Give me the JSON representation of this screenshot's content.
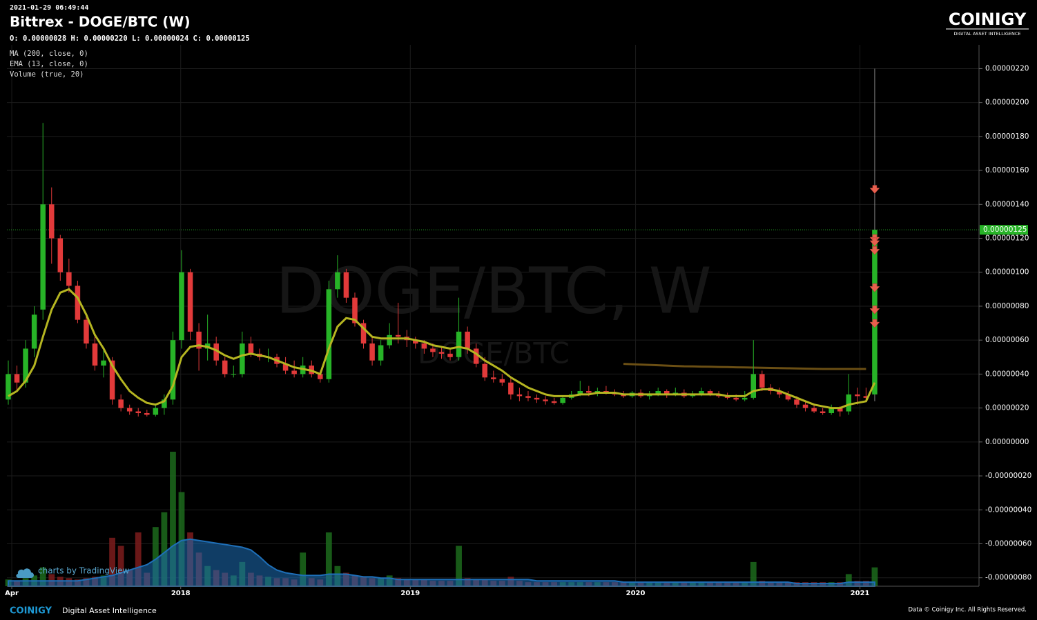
{
  "timestamp": "2021-01-29 06:49:44",
  "title": "Bittrex - DOGE/BTC (W)",
  "ohlc_line": "O: 0.00000028 H: 0.00000220 L: 0.00000024 C: 0.00000125",
  "indicators": [
    "MA (200, close, 0)",
    "EMA (13, close, 0)",
    "Volume (true, 20)"
  ],
  "watermark": "DOGE/BTC, W",
  "watermark_sub": "DOGE/BTC",
  "logo": {
    "name": "COINIGY",
    "tagline": "DIGITAL ASSET INTELLIGENCE"
  },
  "footer": {
    "brand": "COINIGY",
    "tagline": "Digital Asset Intelligence",
    "copyright": "Data © Coinigy Inc.  All Rights Reserved.",
    "credit": "charts by TradingView"
  },
  "chart_data": {
    "type": "candlestick",
    "up_color": "#27b327",
    "down_color": "#e23a3a",
    "ema_color": "#b5b521",
    "ma_color": "#6b4f14",
    "volume_ma_color": "#1e6fb8",
    "up_volume_color": "#1c6a1c",
    "down_volume_color": "#7c1c1c",
    "marker_color": "#e8604e",
    "grid": true,
    "ylim": [
      -8.5e-07,
      2.34e-06
    ],
    "yticks": [
      {
        "value": -8e-07,
        "label": "-0.00000080"
      },
      {
        "value": -6e-07,
        "label": "-0.00000060"
      },
      {
        "value": -4e-07,
        "label": "-0.00000040"
      },
      {
        "value": -2e-07,
        "label": "-0.00000020"
      },
      {
        "value": 0,
        "label": "0.00000000"
      },
      {
        "value": 2e-07,
        "label": "0.00000020"
      },
      {
        "value": 4e-07,
        "label": "0.00000040"
      },
      {
        "value": 6e-07,
        "label": "0.00000060"
      },
      {
        "value": 8e-07,
        "label": "0.00000080"
      },
      {
        "value": 1e-06,
        "label": "0.00000100"
      },
      {
        "value": 1.2e-06,
        "label": "0.00000120"
      },
      {
        "value": 1.4e-06,
        "label": "0.00000140"
      },
      {
        "value": 1.6e-06,
        "label": "0.00000160"
      },
      {
        "value": 1.8e-06,
        "label": "0.00000180"
      },
      {
        "value": 2e-06,
        "label": "0.00000200"
      },
      {
        "value": 2.2e-06,
        "label": "0.00000220"
      }
    ],
    "xlim": [
      -0.16,
      111.4
    ],
    "xticks": [
      {
        "value": 0.4,
        "label": "Apr"
      },
      {
        "value": 19.9,
        "label": "2018"
      },
      {
        "value": 46.4,
        "label": "2019"
      },
      {
        "value": 72.4,
        "label": "2020"
      },
      {
        "value": 98.3,
        "label": "2021"
      }
    ],
    "last_price": {
      "value": 1.25e-06,
      "label": "0.00000125"
    },
    "markers": [
      1.48e-06,
      1.19e-06,
      1.17e-06,
      1.12e-06,
      9e-07,
      7.7e-07,
      6.9e-07
    ],
    "candles": [
      [
        2.5e-07,
        4.8e-07,
        2.2e-07,
        4e-07
      ],
      [
        4e-07,
        4.5e-07,
        3e-07,
        3.5e-07
      ],
      [
        3.5e-07,
        6e-07,
        3.2e-07,
        5.5e-07
      ],
      [
        5.5e-07,
        8e-07,
        5e-07,
        7.5e-07
      ],
      [
        7.8e-07,
        1.88e-06,
        7.2e-07,
        1.4e-06
      ],
      [
        1.4e-06,
        1.5e-06,
        1.05e-06,
        1.2e-06
      ],
      [
        1.2e-06,
        1.22e-06,
        9.5e-07,
        1e-06
      ],
      [
        1e-06,
        1.08e-06,
        8.8e-07,
        9.2e-07
      ],
      [
        9.2e-07,
        9.5e-07,
        7e-07,
        7.2e-07
      ],
      [
        7.2e-07,
        7.5e-07,
        5.5e-07,
        5.8e-07
      ],
      [
        5.8e-07,
        6.2e-07,
        4.2e-07,
        4.5e-07
      ],
      [
        4.5e-07,
        5.5e-07,
        3.8e-07,
        4.8e-07
      ],
      [
        4.8e-07,
        5e-07,
        2.2e-07,
        2.5e-07
      ],
      [
        2.5e-07,
        2.8e-07,
        1.8e-07,
        2e-07
      ],
      [
        2e-07,
        2.2e-07,
        1.6e-07,
        1.8e-07
      ],
      [
        1.8e-07,
        2e-07,
        1.5e-07,
        1.7e-07
      ],
      [
        1.7e-07,
        1.9e-07,
        1.5e-07,
        1.6e-07
      ],
      [
        1.6e-07,
        2.2e-07,
        1.5e-07,
        2e-07
      ],
      [
        2e-07,
        2.8e-07,
        1.6e-07,
        2.5e-07
      ],
      [
        2.5e-07,
        6.5e-07,
        2.2e-07,
        6e-07
      ],
      [
        6e-07,
        1.13e-06,
        5.5e-07,
        1e-06
      ],
      [
        1e-06,
        1.02e-06,
        6e-07,
        6.5e-07
      ],
      [
        6.5e-07,
        7e-07,
        4.2e-07,
        5.5e-07
      ],
      [
        5.5e-07,
        7.5e-07,
        4.8e-07,
        5.8e-07
      ],
      [
        5.8e-07,
        6.2e-07,
        4.5e-07,
        4.8e-07
      ],
      [
        4.8e-07,
        5e-07,
        3.8e-07,
        4e-07
      ],
      [
        4e-07,
        4.5e-07,
        3.8e-07,
        4e-07
      ],
      [
        4e-07,
        6.5e-07,
        3.8e-07,
        5.8e-07
      ],
      [
        5.8e-07,
        6.2e-07,
        5e-07,
        5.2e-07
      ],
      [
        5.2e-07,
        5.5e-07,
        4.8e-07,
        5e-07
      ],
      [
        5e-07,
        5.5e-07,
        4.7e-07,
        5e-07
      ],
      [
        5e-07,
        5.2e-07,
        4.4e-07,
        4.6e-07
      ],
      [
        4.6e-07,
        5e-07,
        4e-07,
        4.2e-07
      ],
      [
        4.2e-07,
        4.8e-07,
        3.8e-07,
        4e-07
      ],
      [
        4e-07,
        5e-07,
        3.8e-07,
        4.5e-07
      ],
      [
        4.5e-07,
        4.8e-07,
        3.8e-07,
        4e-07
      ],
      [
        4e-07,
        4.2e-07,
        3.5e-07,
        3.7e-07
      ],
      [
        3.7e-07,
        9.5e-07,
        3.5e-07,
        9e-07
      ],
      [
        9e-07,
        1.1e-06,
        8.5e-07,
        1e-06
      ],
      [
        1e-06,
        1.02e-06,
        8.2e-07,
        8.5e-07
      ],
      [
        8.5e-07,
        8.8e-07,
        6.8e-07,
        7e-07
      ],
      [
        7e-07,
        7.2e-07,
        5.5e-07,
        5.8e-07
      ],
      [
        5.8e-07,
        6.2e-07,
        4.5e-07,
        4.8e-07
      ],
      [
        4.8e-07,
        6e-07,
        4.5e-07,
        5.7e-07
      ],
      [
        5.7e-07,
        7e-07,
        5.5e-07,
        6.3e-07
      ],
      [
        6.3e-07,
        8.2e-07,
        5.8e-07,
        6.2e-07
      ],
      [
        6.2e-07,
        6.6e-07,
        5.6e-07,
        6e-07
      ],
      [
        6e-07,
        6.2e-07,
        5.5e-07,
        5.8e-07
      ],
      [
        5.8e-07,
        6e-07,
        5.2e-07,
        5.5e-07
      ],
      [
        5.5e-07,
        5.8e-07,
        5e-07,
        5.3e-07
      ],
      [
        5.3e-07,
        5.6e-07,
        4.9e-07,
        5.2e-07
      ],
      [
        5.2e-07,
        5.5e-07,
        4.8e-07,
        5e-07
      ],
      [
        5e-07,
        8.5e-07,
        4.8e-07,
        6.5e-07
      ],
      [
        6.5e-07,
        6.8e-07,
        5.2e-07,
        5.5e-07
      ],
      [
        5.5e-07,
        5.8e-07,
        4.4e-07,
        4.6e-07
      ],
      [
        4.6e-07,
        5e-07,
        3.6e-07,
        3.8e-07
      ],
      [
        3.8e-07,
        4.2e-07,
        3.5e-07,
        3.7e-07
      ],
      [
        3.7e-07,
        4e-07,
        3.3e-07,
        3.5e-07
      ],
      [
        3.5e-07,
        3.8e-07,
        2.5e-07,
        2.8e-07
      ],
      [
        2.8e-07,
        3.2e-07,
        2.4e-07,
        2.7e-07
      ],
      [
        2.7e-07,
        3e-07,
        2.4e-07,
        2.6e-07
      ],
      [
        2.6e-07,
        2.8e-07,
        2.3e-07,
        2.5e-07
      ],
      [
        2.5e-07,
        2.7e-07,
        2.2e-07,
        2.4e-07
      ],
      [
        2.4e-07,
        2.6e-07,
        2.2e-07,
        2.3e-07
      ],
      [
        2.3e-07,
        2.7e-07,
        2.2e-07,
        2.6e-07
      ],
      [
        2.6e-07,
        3e-07,
        2.5e-07,
        2.8e-07
      ],
      [
        2.8e-07,
        3.6e-07,
        2.7e-07,
        3e-07
      ],
      [
        3e-07,
        3.3e-07,
        2.7e-07,
        2.9e-07
      ],
      [
        2.9e-07,
        3.2e-07,
        2.7e-07,
        3e-07
      ],
      [
        3e-07,
        3.3e-07,
        2.8e-07,
        2.9e-07
      ],
      [
        2.9e-07,
        3.1e-07,
        2.7e-07,
        2.8e-07
      ],
      [
        2.8e-07,
        3e-07,
        2.6e-07,
        2.7e-07
      ],
      [
        2.7e-07,
        3e-07,
        2.6e-07,
        2.9e-07
      ],
      [
        2.9e-07,
        3.1e-07,
        2.6e-07,
        2.7e-07
      ],
      [
        2.7e-07,
        3e-07,
        2.5e-07,
        2.8e-07
      ],
      [
        2.8e-07,
        3.2e-07,
        2.7e-07,
        3e-07
      ],
      [
        3e-07,
        3.1e-07,
        2.6e-07,
        2.8e-07
      ],
      [
        2.8e-07,
        3.2e-07,
        2.7e-07,
        2.9e-07
      ],
      [
        2.9e-07,
        3.1e-07,
        2.6e-07,
        2.7e-07
      ],
      [
        2.7e-07,
        3e-07,
        2.6e-07,
        2.8e-07
      ],
      [
        2.8e-07,
        3.2e-07,
        2.7e-07,
        3e-07
      ],
      [
        3e-07,
        3.1e-07,
        2.7e-07,
        2.8e-07
      ],
      [
        2.8e-07,
        3e-07,
        2.6e-07,
        2.7e-07
      ],
      [
        2.7e-07,
        2.9e-07,
        2.5e-07,
        2.6e-07
      ],
      [
        2.6e-07,
        2.8e-07,
        2.4e-07,
        2.5e-07
      ],
      [
        2.5e-07,
        3e-07,
        2.4e-07,
        2.6e-07
      ],
      [
        2.6e-07,
        6e-07,
        2.5e-07,
        4e-07
      ],
      [
        4e-07,
        4.2e-07,
        3e-07,
        3.2e-07
      ],
      [
        3.2e-07,
        3.4e-07,
        2.8e-07,
        3e-07
      ],
      [
        3e-07,
        3.2e-07,
        2.6e-07,
        2.8e-07
      ],
      [
        2.8e-07,
        3e-07,
        2.4e-07,
        2.5e-07
      ],
      [
        2.5e-07,
        2.7e-07,
        2e-07,
        2.2e-07
      ],
      [
        2.2e-07,
        2.4e-07,
        1.8e-07,
        2e-07
      ],
      [
        2e-07,
        2.2e-07,
        1.7e-07,
        1.8e-07
      ],
      [
        1.8e-07,
        2e-07,
        1.6e-07,
        1.7e-07
      ],
      [
        1.7e-07,
        2.2e-07,
        1.6e-07,
        2e-07
      ],
      [
        2e-07,
        2.1e-07,
        1.5e-07,
        1.8e-07
      ],
      [
        1.8e-07,
        4e-07,
        1.6e-07,
        2.8e-07
      ],
      [
        2.8e-07,
        3.2e-07,
        2.2e-07,
        2.7e-07
      ],
      [
        2.7e-07,
        3.2e-07,
        2.4e-07,
        2.6e-07
      ],
      [
        2.8e-07,
        2.2e-06,
        2.4e-07,
        1.25e-06
      ]
    ],
    "ema": [
      2.7e-07,
      3e-07,
      3.6e-07,
      4.5e-07,
      6.2e-07,
      7.8e-07,
      8.8e-07,
      9e-07,
      8.5e-07,
      7.5e-07,
      6.3e-07,
      5.5e-07,
      4.5e-07,
      3.7e-07,
      3e-07,
      2.6e-07,
      2.3e-07,
      2.2e-07,
      2.4e-07,
      3.3e-07,
      5e-07,
      5.6e-07,
      5.7e-07,
      5.6e-07,
      5.4e-07,
      5.1e-07,
      4.9e-07,
      5.1e-07,
      5.2e-07,
      5.1e-07,
      5e-07,
      4.8e-07,
      4.6e-07,
      4.4e-07,
      4.3e-07,
      4.2e-07,
      4e-07,
      5.5e-07,
      6.8e-07,
      7.3e-07,
      7.2e-07,
      6.7e-07,
      6.2e-07,
      6.1e-07,
      6.1e-07,
      6.1e-07,
      6.1e-07,
      6e-07,
      5.9e-07,
      5.7e-07,
      5.6e-07,
      5.5e-07,
      5.6e-07,
      5.5e-07,
      5.2e-07,
      4.8e-07,
      4.5e-07,
      4.2e-07,
      3.8e-07,
      3.5e-07,
      3.2e-07,
      3e-07,
      2.8e-07,
      2.7e-07,
      2.7e-07,
      2.7e-07,
      2.8e-07,
      2.8e-07,
      2.9e-07,
      2.9e-07,
      2.9e-07,
      2.8e-07,
      2.8e-07,
      2.8e-07,
      2.8e-07,
      2.8e-07,
      2.8e-07,
      2.8e-07,
      2.8e-07,
      2.8e-07,
      2.8e-07,
      2.8e-07,
      2.8e-07,
      2.7e-07,
      2.7e-07,
      2.7e-07,
      3e-07,
      3.1e-07,
      3.1e-07,
      3e-07,
      2.8e-07,
      2.6e-07,
      2.4e-07,
      2.2e-07,
      2.1e-07,
      2e-07,
      2e-07,
      2.2e-07,
      2.3e-07,
      2.4e-07,
      3.5e-07
    ],
    "ma": [
      null,
      null,
      null,
      null,
      null,
      null,
      null,
      null,
      null,
      null,
      null,
      null,
      null,
      null,
      null,
      null,
      null,
      null,
      null,
      null,
      null,
      null,
      null,
      null,
      null,
      null,
      null,
      null,
      null,
      null,
      null,
      null,
      null,
      null,
      null,
      null,
      null,
      null,
      null,
      null,
      null,
      null,
      null,
      null,
      null,
      null,
      null,
      null,
      null,
      null,
      null,
      null,
      null,
      null,
      null,
      null,
      null,
      null,
      null,
      null,
      null,
      null,
      null,
      null,
      null,
      null,
      null,
      null,
      null,
      null,
      null,
      4.6e-07,
      4.58e-07,
      4.56e-07,
      4.54e-07,
      4.52e-07,
      4.5e-07,
      4.48e-07,
      4.46e-07,
      4.45e-07,
      4.44e-07,
      4.43e-07,
      4.42e-07,
      4.41e-07,
      4.4e-07,
      4.39e-07,
      4.38e-07,
      4.37e-07,
      4.36e-07,
      4.35e-07,
      4.34e-07,
      4.33e-07,
      4.32e-07,
      4.31e-07,
      4.3e-07,
      4.3e-07,
      4.3e-07,
      4.3e-07,
      4.3e-07,
      4.3e-07
    ],
    "volume": [
      5,
      4,
      6,
      8,
      14,
      9,
      7,
      6,
      5,
      6,
      7,
      8,
      36,
      30,
      12,
      40,
      10,
      44,
      55,
      100,
      70,
      40,
      25,
      15,
      12,
      10,
      8,
      18,
      10,
      8,
      7,
      6,
      6,
      5,
      25,
      6,
      5,
      40,
      15,
      10,
      8,
      7,
      6,
      6,
      8,
      6,
      5,
      5,
      5,
      4,
      4,
      4,
      30,
      6,
      5,
      5,
      4,
      4,
      7,
      4,
      3,
      3,
      3,
      3,
      3,
      3,
      3,
      3,
      3,
      3,
      3,
      3,
      3,
      3,
      3,
      3,
      3,
      3,
      3,
      3,
      3,
      3,
      3,
      3,
      3,
      3,
      18,
      4,
      3,
      3,
      3,
      3,
      3,
      3,
      3,
      3,
      3,
      9,
      4,
      4,
      14
    ],
    "volume_ma": [
      4,
      4,
      4,
      4,
      4,
      4,
      4,
      4,
      4,
      5,
      6,
      7,
      8,
      10,
      12,
      14,
      16,
      20,
      25,
      30,
      34,
      35,
      34,
      33,
      32,
      31,
      30,
      29,
      27,
      22,
      16,
      12,
      10,
      9,
      8,
      8,
      8,
      9,
      9,
      9,
      8,
      7,
      7,
      6,
      6,
      5,
      5,
      5,
      5,
      5,
      5,
      5,
      5,
      5,
      5,
      5,
      5,
      5,
      5,
      5,
      5,
      4,
      4,
      4,
      4,
      4,
      4,
      4,
      4,
      4,
      4,
      3,
      3,
      3,
      3,
      3,
      3,
      3,
      3,
      3,
      3,
      3,
      3,
      3,
      3,
      3,
      3,
      3,
      3,
      3,
      3,
      2,
      2,
      2,
      2,
      2,
      2,
      3,
      3,
      3,
      3
    ]
  }
}
